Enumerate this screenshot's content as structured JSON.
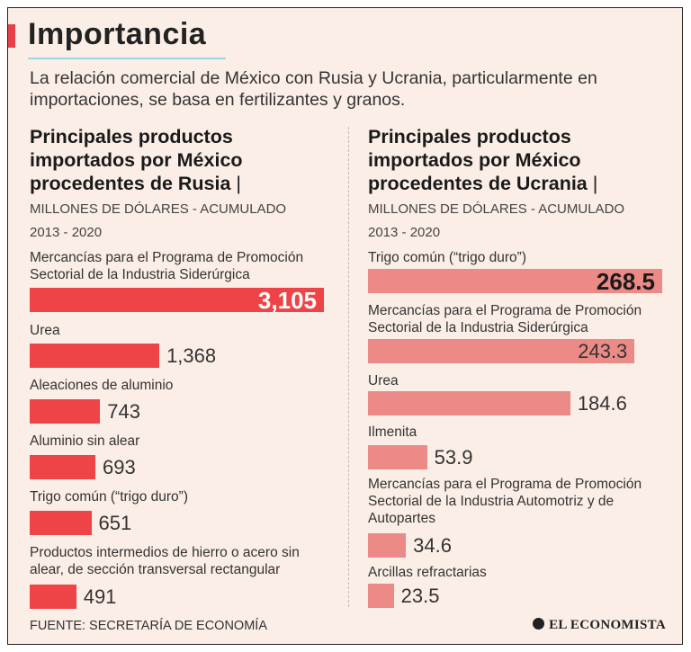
{
  "header": {
    "title": "Importancia",
    "subtitle": "La relación comercial de México con Rusia y Ucrania, particularmente en importaciones, se basa en fertilizantes y granos.",
    "accent_color": "#e8404a"
  },
  "chart_data": [
    {
      "type": "bar",
      "orientation": "horizontal",
      "title": "Principales productos importados por México procedentes de Rusia",
      "unit": "MILLONES DE DÓLARES - ACUMULADO",
      "period": "2013 - 2020",
      "color": "#ef4447",
      "categories": [
        "Mercancías para el Programa de Promoción Sectorial de la Industria Siderúrgica",
        "Urea",
        "Aleaciones de aluminio",
        "Aluminio sin alear",
        "Trigo común (“trigo duro”)",
        "Productos intermedios de hierro o acero sin alear, de sección transversal rectangular"
      ],
      "values": [
        3105,
        1368,
        743,
        693,
        651,
        491
      ],
      "value_labels": [
        "3,105",
        "1,368",
        "743",
        "693",
        "651",
        "491"
      ]
    },
    {
      "type": "bar",
      "orientation": "horizontal",
      "title": "Principales productos importados por México procedentes de Ucrania",
      "unit": "MILLONES DE DÓLARES - ACUMULADO",
      "period": "2013 - 2020",
      "color": "#ec8a88",
      "categories": [
        "Trigo común (“trigo duro”)",
        "Mercancías para el Programa de Promoción Sectorial de la Industria Siderúrgica",
        "Urea",
        "Ilmenita",
        "Mercancías para el Programa de Promoción Sectorial de la Industria Automotriz y de Autopartes",
        "Arcillas refractarias"
      ],
      "values": [
        268.5,
        243.3,
        184.6,
        53.9,
        34.6,
        23.5
      ],
      "value_labels": [
        "268.5",
        "243.3",
        "184.6",
        "53.9",
        "34.6",
        "23.5"
      ]
    }
  ],
  "footer": {
    "source": "FUENTE: SECRETARÍA DE ECONOMÍA",
    "brand": "EL ECONOMISTA"
  }
}
